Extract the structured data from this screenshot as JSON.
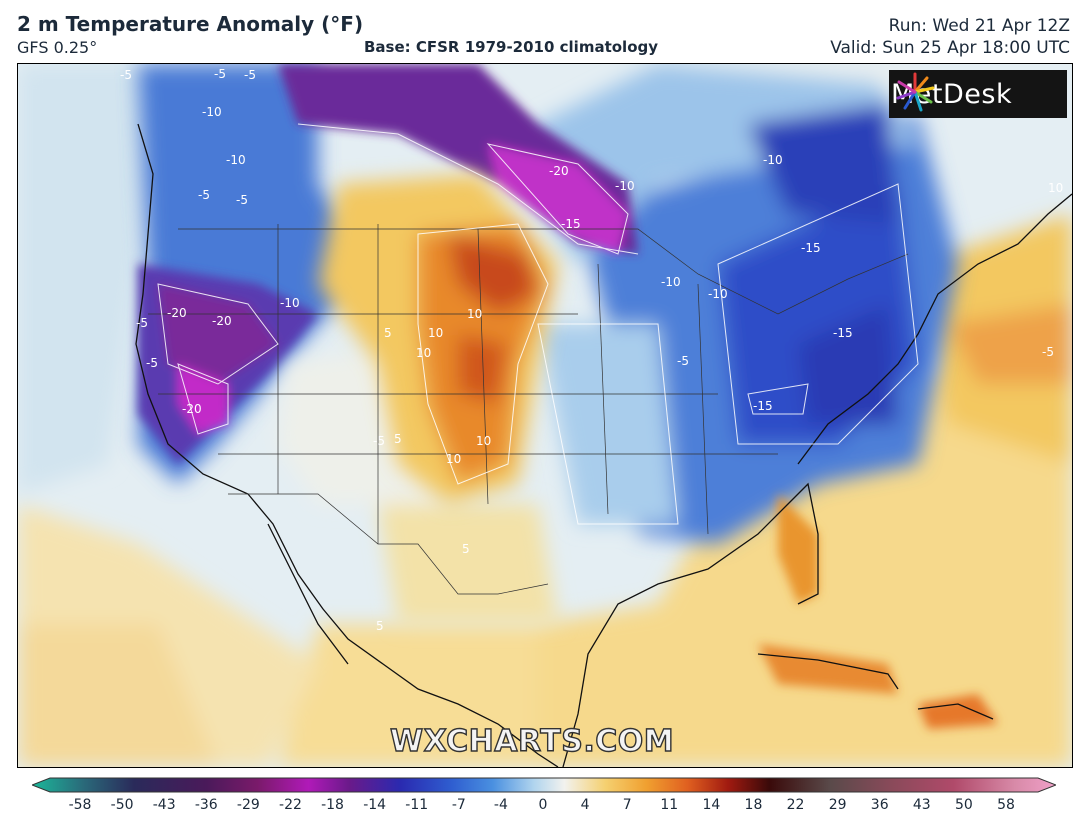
{
  "header": {
    "title": "2 m Temperature Anomaly (°F)",
    "model": "GFS 0.25°",
    "base": "Base: CFSR 1979-2010 climatology",
    "run": "Run: Wed 21 Apr 12Z",
    "valid": "Valid: Sun 25 Apr 18:00 UTC"
  },
  "logo": {
    "text": "MetDesk"
  },
  "watermark": "WXCHARTS.COM",
  "colorbar": {
    "ticks": [
      "-58",
      "-50",
      "-43",
      "-36",
      "-29",
      "-22",
      "-18",
      "-14",
      "-11",
      "-7",
      "-4",
      "0",
      "4",
      "7",
      "11",
      "14",
      "18",
      "22",
      "29",
      "36",
      "43",
      "50",
      "58"
    ],
    "colors": {
      "cold_end": "#1bb89a",
      "deep_cold": "#6a1a8a",
      "cold": "#2f48c4",
      "cool": "#8fc0e6",
      "neutral": "#f2f2ee",
      "warm": "#f3c44a",
      "hot": "#e07020",
      "very_hot": "#8a1010",
      "warm_end": "#f0a0c8"
    }
  },
  "contour_labels": [
    {
      "text": "-5"
    },
    {
      "text": "-10"
    },
    {
      "text": "-10"
    },
    {
      "text": "-5"
    },
    {
      "text": "-20"
    },
    {
      "text": "-10"
    },
    {
      "text": "-15"
    },
    {
      "text": "-10"
    },
    {
      "text": "-15"
    },
    {
      "text": "-10"
    },
    {
      "text": "-10"
    },
    {
      "text": "-15"
    },
    {
      "text": "-15"
    },
    {
      "text": "-5"
    },
    {
      "text": "-20"
    },
    {
      "text": "-20"
    },
    {
      "text": "-10"
    },
    {
      "text": "-5"
    },
    {
      "text": "-20"
    },
    {
      "text": "-5"
    },
    {
      "text": "10"
    },
    {
      "text": "10"
    },
    {
      "text": "10"
    },
    {
      "text": "10"
    },
    {
      "text": "10"
    },
    {
      "text": "-5"
    },
    {
      "text": "5"
    },
    {
      "text": "5"
    },
    {
      "text": "-5"
    },
    {
      "text": "5"
    },
    {
      "text": "5"
    },
    {
      "text": "-5"
    },
    {
      "text": "-5"
    },
    {
      "text": "10"
    },
    {
      "text": "-5"
    }
  ]
}
